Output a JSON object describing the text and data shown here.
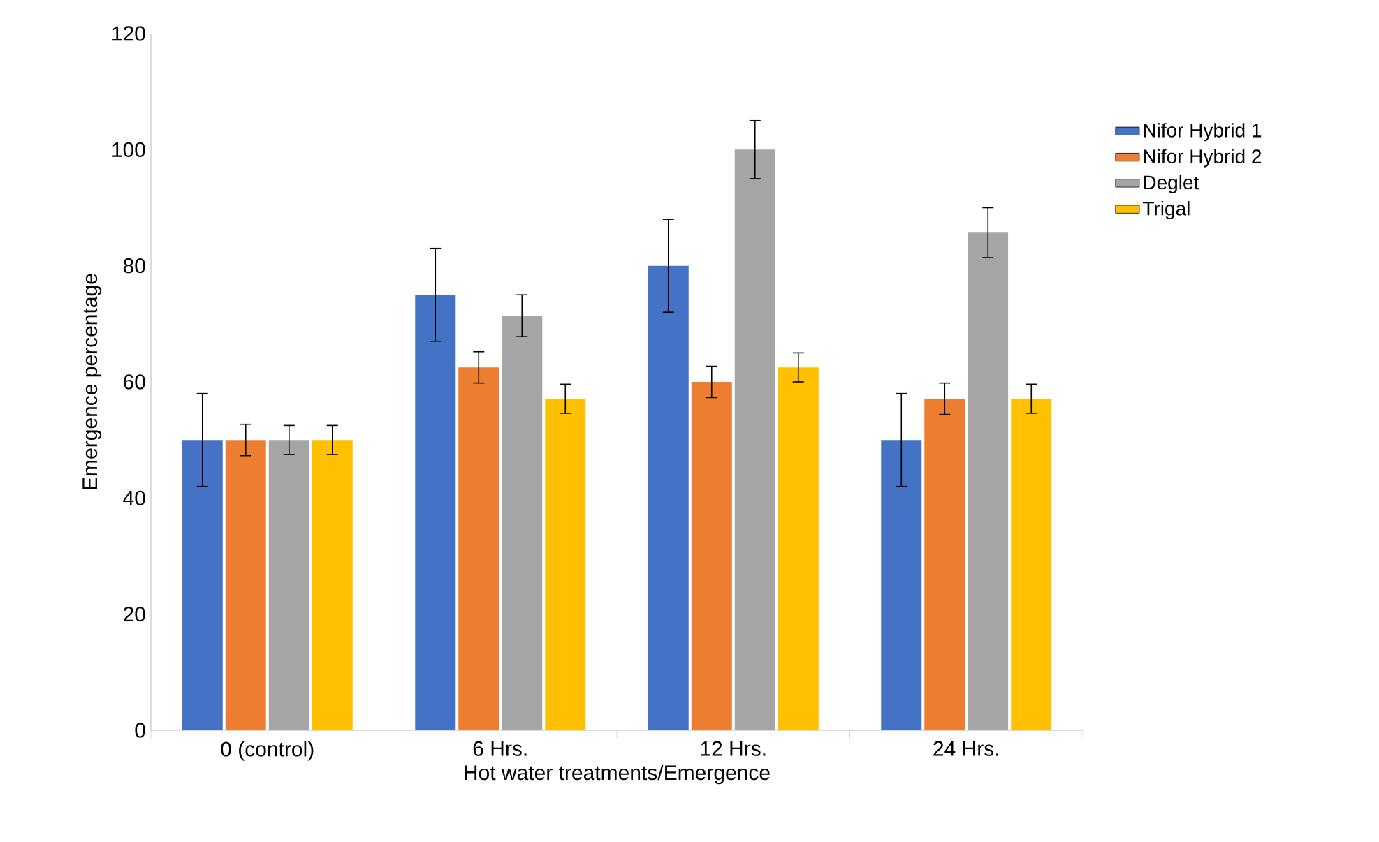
{
  "chart_data": {
    "type": "bar",
    "xlabel": "Hot water treatments/Emergence",
    "ylabel": "Emergence percentage",
    "categories": [
      "0 (control)",
      "6 Hrs.",
      "12 Hrs.",
      "24 Hrs."
    ],
    "series": [
      {
        "name": "Nifor Hybrid 1",
        "color": "#4472c4",
        "values": [
          50,
          75,
          80,
          50
        ],
        "errors": [
          8,
          8,
          8,
          8
        ]
      },
      {
        "name": "Nifor Hybrid 2",
        "color": "#ed7d31",
        "values": [
          50,
          62.5,
          60,
          57.1
        ],
        "errors": [
          2.7,
          2.7,
          2.7,
          2.7
        ]
      },
      {
        "name": "Deglet",
        "color": "#a5a5a5",
        "values": [
          50,
          71.4,
          100,
          85.7
        ],
        "errors": [
          2.5,
          3.6,
          5,
          4.3
        ]
      },
      {
        "name": "Trigal",
        "color": "#ffc000",
        "values": [
          50,
          57.1,
          62.5,
          57.1
        ],
        "errors": [
          2.5,
          2.5,
          2.5,
          2.5
        ]
      }
    ],
    "ylim": [
      0,
      120
    ],
    "yticks": [
      0,
      20,
      40,
      60,
      80,
      100,
      120
    ],
    "grid": false,
    "legend": "right"
  }
}
